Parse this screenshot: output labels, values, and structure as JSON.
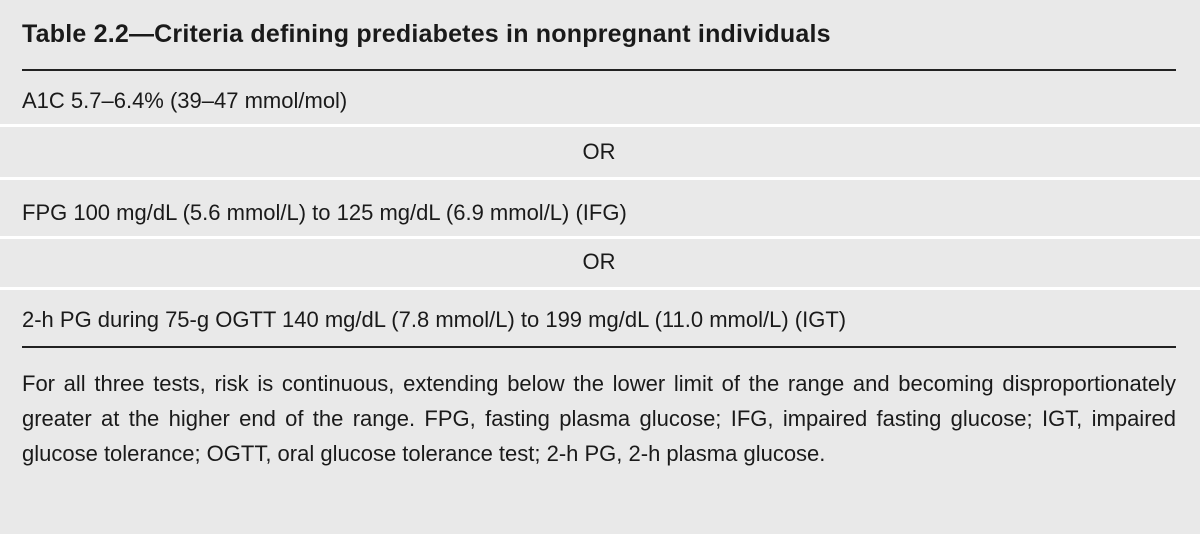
{
  "table": {
    "title": "Table 2.2—Criteria defining prediabetes in nonpregnant individuals",
    "rows": [
      "A1C 5.7–6.4% (39–47 mmol/mol)",
      "OR",
      "FPG 100 mg/dL (5.6 mmol/L) to 125 mg/dL (6.9 mmol/L) (IFG)",
      "OR",
      "2-h PG during 75-g OGTT 140 mg/dL (7.8 mmol/L) to 199 mg/dL (11.0 mmol/L) (IGT)"
    ],
    "footnote": "For all three tests, risk is continuous, extending below the lower limit of the range and becoming disproportionately greater at the higher end of the range. FPG, fasting plasma glucose; IFG, impaired fasting glucose; IGT, impaired glucose tolerance; OGTT, oral glucose tolerance test; 2-h PG, 2-h plasma glucose."
  }
}
